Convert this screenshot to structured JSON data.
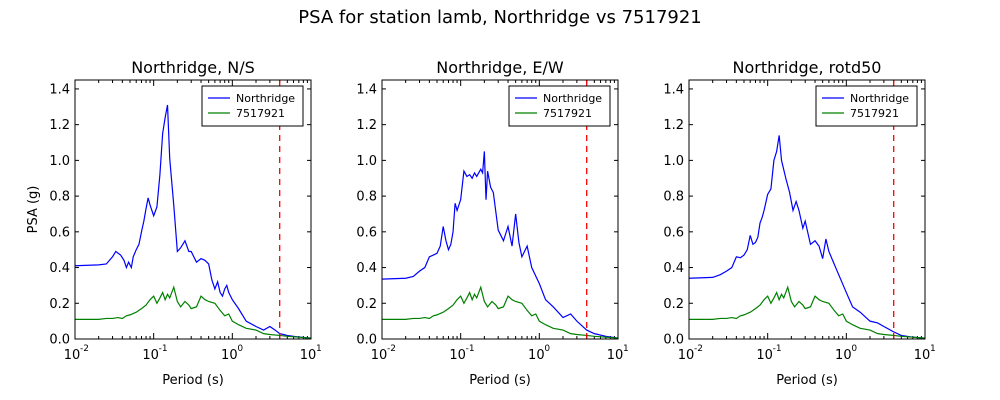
{
  "figure": {
    "title": "PSA for station lamb, Northridge vs 7517921"
  },
  "colors": {
    "northridge": "#0000ff",
    "event": "#008000",
    "marker": "#ff0000"
  },
  "chart_data": [
    {
      "type": "line",
      "title": "Northridge, N/S",
      "xlabel": "Period (s)",
      "ylabel": "PSA (g)",
      "xscale": "log",
      "xlim": [
        0.01,
        10
      ],
      "ylim": [
        0,
        1.45
      ],
      "yticks": [
        0.0,
        0.2,
        0.4,
        0.6,
        0.8,
        1.0,
        1.2,
        1.4
      ],
      "ytick_labels": [
        "0.0",
        "0.2",
        "0.4",
        "0.6",
        "0.8",
        "1.0",
        "1.2",
        "1.4"
      ],
      "xtick_labels": [
        "10",
        "10",
        "10",
        "10"
      ],
      "xtick_exponents": [
        "-2",
        "-1",
        "0",
        "1"
      ],
      "xticks": [
        0.01,
        0.1,
        1,
        10
      ],
      "vline_x": 4.0,
      "legend": "top-right",
      "series": [
        {
          "name": "Northridge",
          "x": [
            0.01,
            0.02,
            0.025,
            0.03,
            0.033,
            0.038,
            0.042,
            0.045,
            0.048,
            0.052,
            0.055,
            0.06,
            0.065,
            0.07,
            0.075,
            0.08,
            0.085,
            0.09,
            0.1,
            0.11,
            0.12,
            0.13,
            0.14,
            0.15,
            0.16,
            0.18,
            0.2,
            0.22,
            0.25,
            0.28,
            0.3,
            0.35,
            0.4,
            0.45,
            0.5,
            0.55,
            0.6,
            0.65,
            0.7,
            0.75,
            0.8,
            0.85,
            0.9,
            1.0,
            1.2,
            1.5,
            2.0,
            2.5,
            3.0,
            3.5,
            4.0,
            5.0,
            6.0,
            7.5,
            10.0
          ],
          "y": [
            0.41,
            0.415,
            0.42,
            0.46,
            0.49,
            0.47,
            0.44,
            0.4,
            0.43,
            0.4,
            0.46,
            0.5,
            0.53,
            0.6,
            0.66,
            0.73,
            0.79,
            0.75,
            0.69,
            0.74,
            0.92,
            1.15,
            1.24,
            1.31,
            1.01,
            0.75,
            0.49,
            0.51,
            0.55,
            0.49,
            0.49,
            0.43,
            0.45,
            0.44,
            0.42,
            0.33,
            0.28,
            0.32,
            0.26,
            0.24,
            0.28,
            0.3,
            0.26,
            0.22,
            0.17,
            0.1,
            0.07,
            0.05,
            0.07,
            0.05,
            0.03,
            0.02,
            0.015,
            0.01,
            0.005
          ]
        },
        {
          "name": "7517921",
          "x": [
            0.01,
            0.02,
            0.025,
            0.03,
            0.035,
            0.04,
            0.045,
            0.05,
            0.06,
            0.07,
            0.08,
            0.09,
            0.1,
            0.11,
            0.12,
            0.13,
            0.14,
            0.15,
            0.16,
            0.18,
            0.2,
            0.22,
            0.25,
            0.28,
            0.3,
            0.35,
            0.4,
            0.45,
            0.5,
            0.6,
            0.7,
            0.8,
            0.9,
            1.0,
            1.2,
            1.5,
            2.0,
            2.5,
            3.0,
            4.0,
            5.0,
            7.0,
            10.0
          ],
          "y": [
            0.11,
            0.11,
            0.115,
            0.115,
            0.12,
            0.115,
            0.13,
            0.135,
            0.15,
            0.17,
            0.19,
            0.22,
            0.24,
            0.2,
            0.23,
            0.26,
            0.22,
            0.25,
            0.23,
            0.29,
            0.21,
            0.18,
            0.21,
            0.19,
            0.17,
            0.18,
            0.24,
            0.22,
            0.21,
            0.2,
            0.16,
            0.13,
            0.14,
            0.1,
            0.08,
            0.06,
            0.05,
            0.03,
            0.025,
            0.02,
            0.015,
            0.01,
            0.005
          ]
        }
      ]
    },
    {
      "type": "line",
      "title": "Northridge, E/W",
      "xlabel": "Period (s)",
      "ylabel": "",
      "xscale": "log",
      "xlim": [
        0.01,
        10
      ],
      "ylim": [
        0,
        1.45
      ],
      "yticks": [
        0.0,
        0.2,
        0.4,
        0.6,
        0.8,
        1.0,
        1.2,
        1.4
      ],
      "ytick_labels": [
        "0.0",
        "0.2",
        "0.4",
        "0.6",
        "0.8",
        "1.0",
        "1.2",
        "1.4"
      ],
      "xtick_labels": [
        "10",
        "10",
        "10",
        "10"
      ],
      "xtick_exponents": [
        "-2",
        "-1",
        "0",
        "1"
      ],
      "xticks": [
        0.01,
        0.1,
        1,
        10
      ],
      "vline_x": 4.0,
      "legend": "top-right",
      "series": [
        {
          "name": "Northridge",
          "x": [
            0.01,
            0.02,
            0.025,
            0.03,
            0.035,
            0.04,
            0.045,
            0.05,
            0.055,
            0.06,
            0.065,
            0.07,
            0.075,
            0.08,
            0.085,
            0.09,
            0.1,
            0.11,
            0.12,
            0.13,
            0.14,
            0.15,
            0.16,
            0.18,
            0.19,
            0.2,
            0.21,
            0.22,
            0.24,
            0.26,
            0.3,
            0.35,
            0.4,
            0.45,
            0.5,
            0.55,
            0.6,
            0.7,
            0.8,
            1.0,
            1.2,
            1.5,
            2.0,
            2.5,
            3.0,
            4.0,
            5.0,
            7.0,
            10.0
          ],
          "y": [
            0.335,
            0.34,
            0.35,
            0.38,
            0.4,
            0.46,
            0.47,
            0.48,
            0.52,
            0.63,
            0.55,
            0.5,
            0.53,
            0.6,
            0.76,
            0.72,
            0.78,
            0.94,
            0.91,
            0.92,
            0.9,
            0.93,
            0.91,
            0.95,
            0.93,
            1.05,
            0.78,
            0.94,
            0.85,
            0.82,
            0.61,
            0.55,
            0.63,
            0.52,
            0.7,
            0.54,
            0.46,
            0.52,
            0.4,
            0.31,
            0.22,
            0.18,
            0.12,
            0.14,
            0.1,
            0.05,
            0.03,
            0.015,
            0.005
          ]
        },
        {
          "name": "7517921",
          "x": [
            0.01,
            0.02,
            0.025,
            0.03,
            0.035,
            0.04,
            0.045,
            0.05,
            0.06,
            0.07,
            0.08,
            0.09,
            0.1,
            0.11,
            0.12,
            0.13,
            0.14,
            0.15,
            0.16,
            0.18,
            0.2,
            0.22,
            0.25,
            0.28,
            0.3,
            0.35,
            0.4,
            0.45,
            0.5,
            0.6,
            0.7,
            0.8,
            0.9,
            1.0,
            1.2,
            1.5,
            2.0,
            2.5,
            3.0,
            4.0,
            5.0,
            7.0,
            10.0
          ],
          "y": [
            0.11,
            0.11,
            0.115,
            0.115,
            0.12,
            0.115,
            0.13,
            0.135,
            0.15,
            0.17,
            0.19,
            0.22,
            0.24,
            0.2,
            0.23,
            0.26,
            0.22,
            0.25,
            0.23,
            0.29,
            0.21,
            0.18,
            0.21,
            0.19,
            0.17,
            0.18,
            0.24,
            0.22,
            0.21,
            0.2,
            0.16,
            0.13,
            0.14,
            0.1,
            0.08,
            0.06,
            0.05,
            0.03,
            0.025,
            0.02,
            0.015,
            0.01,
            0.005
          ]
        }
      ]
    },
    {
      "type": "line",
      "title": "Northridge, rotd50",
      "xlabel": "Period (s)",
      "ylabel": "",
      "xscale": "log",
      "xlim": [
        0.01,
        10
      ],
      "ylim": [
        0,
        1.45
      ],
      "yticks": [
        0.0,
        0.2,
        0.4,
        0.6,
        0.8,
        1.0,
        1.2,
        1.4
      ],
      "ytick_labels": [
        "0.0",
        "0.2",
        "0.4",
        "0.6",
        "0.8",
        "1.0",
        "1.2",
        "1.4"
      ],
      "xtick_labels": [
        "10",
        "10",
        "10",
        "10"
      ],
      "xtick_exponents": [
        "-2",
        "-1",
        "0",
        "1"
      ],
      "xticks": [
        0.01,
        0.1,
        1,
        10
      ],
      "vline_x": 4.0,
      "legend": "top-right",
      "series": [
        {
          "name": "Northridge",
          "x": [
            0.01,
            0.02,
            0.025,
            0.03,
            0.035,
            0.04,
            0.045,
            0.05,
            0.055,
            0.06,
            0.065,
            0.07,
            0.075,
            0.08,
            0.085,
            0.09,
            0.1,
            0.11,
            0.12,
            0.13,
            0.14,
            0.15,
            0.17,
            0.19,
            0.21,
            0.23,
            0.25,
            0.28,
            0.3,
            0.35,
            0.4,
            0.45,
            0.5,
            0.55,
            0.6,
            0.7,
            0.8,
            1.0,
            1.2,
            1.5,
            2.0,
            2.5,
            3.0,
            4.0,
            5.0,
            7.0,
            10.0
          ],
          "y": [
            0.34,
            0.345,
            0.36,
            0.38,
            0.4,
            0.46,
            0.455,
            0.47,
            0.5,
            0.58,
            0.53,
            0.54,
            0.57,
            0.65,
            0.68,
            0.72,
            0.81,
            0.84,
            1.0,
            1.05,
            1.14,
            1.0,
            0.9,
            0.82,
            0.72,
            0.77,
            0.72,
            0.62,
            0.66,
            0.53,
            0.55,
            0.52,
            0.45,
            0.56,
            0.49,
            0.42,
            0.36,
            0.26,
            0.18,
            0.15,
            0.1,
            0.09,
            0.07,
            0.04,
            0.02,
            0.01,
            0.005
          ]
        },
        {
          "name": "7517921",
          "x": [
            0.01,
            0.02,
            0.025,
            0.03,
            0.035,
            0.04,
            0.045,
            0.05,
            0.06,
            0.07,
            0.08,
            0.09,
            0.1,
            0.11,
            0.12,
            0.13,
            0.14,
            0.15,
            0.16,
            0.18,
            0.2,
            0.22,
            0.25,
            0.28,
            0.3,
            0.35,
            0.4,
            0.45,
            0.5,
            0.6,
            0.7,
            0.8,
            0.9,
            1.0,
            1.2,
            1.5,
            2.0,
            2.5,
            3.0,
            4.0,
            5.0,
            7.0,
            10.0
          ],
          "y": [
            0.11,
            0.11,
            0.115,
            0.115,
            0.12,
            0.115,
            0.13,
            0.135,
            0.15,
            0.17,
            0.19,
            0.22,
            0.24,
            0.2,
            0.23,
            0.26,
            0.22,
            0.25,
            0.23,
            0.29,
            0.21,
            0.18,
            0.21,
            0.19,
            0.17,
            0.18,
            0.24,
            0.22,
            0.21,
            0.2,
            0.16,
            0.13,
            0.14,
            0.1,
            0.08,
            0.06,
            0.05,
            0.03,
            0.025,
            0.02,
            0.015,
            0.01,
            0.005
          ]
        }
      ]
    }
  ]
}
